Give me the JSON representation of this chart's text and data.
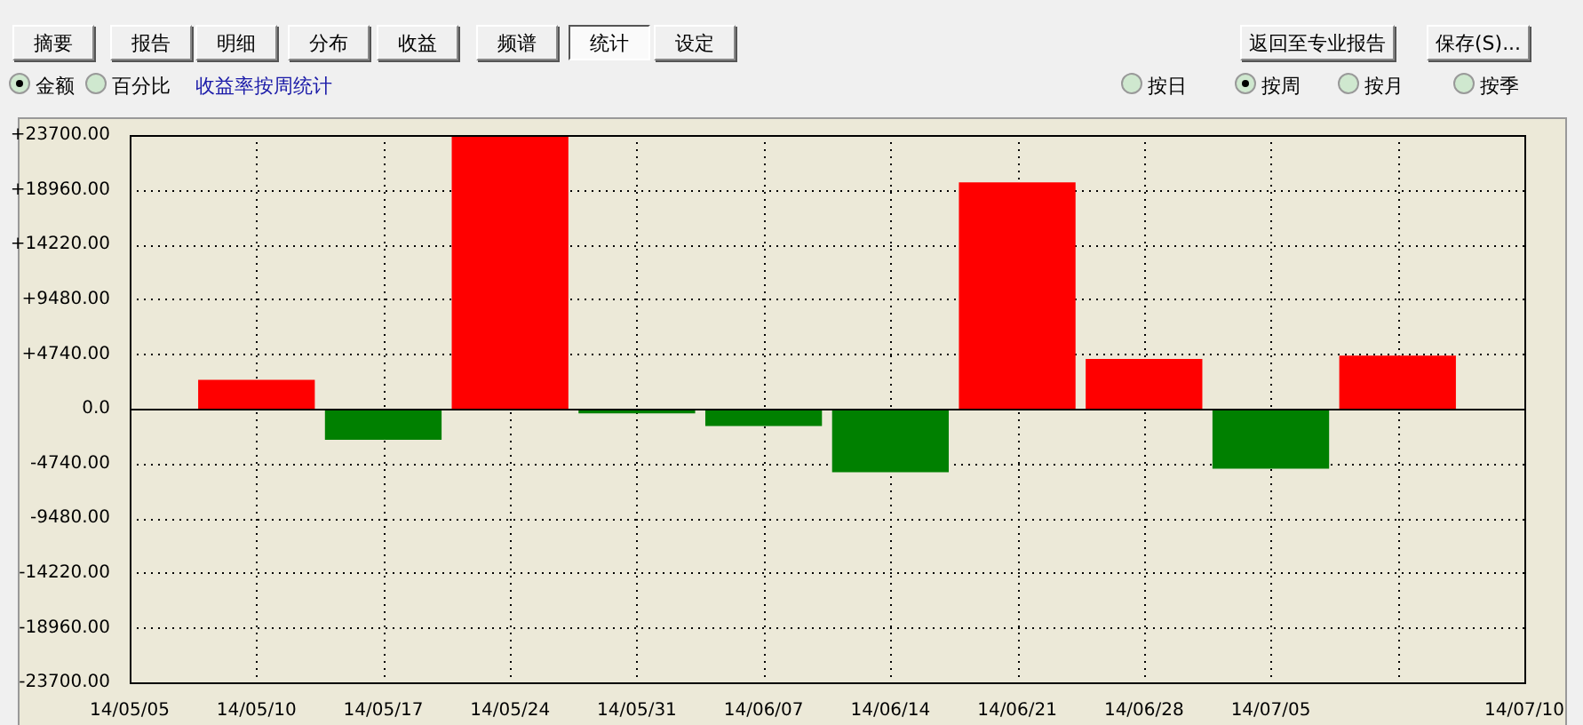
{
  "chart_data": {
    "type": "bar",
    "title": "收益率按周统计",
    "annotations": [
      "摘要",
      "报告",
      "明细",
      "分布",
      "收益",
      "频谱",
      "统计",
      "设定",
      "返回至专业报告",
      "保存(S)...",
      "金额",
      "百分比",
      "按日",
      "按周",
      "按月",
      "按季"
    ],
    "categories": [
      "14/05/05",
      "14/05/10",
      "14/05/17",
      "14/05/24",
      "14/05/31",
      "14/06/07",
      "14/06/14",
      "14/06/21",
      "14/06/28",
      "14/07/05",
      null,
      "14/07/10"
    ],
    "values": [
      null,
      2500,
      -2700,
      23700,
      -400,
      -1500,
      -5500,
      19600,
      4300,
      -5200,
      4600,
      null
    ],
    "colors": [
      null,
      "#ff0000",
      "#008000",
      "#ff0000",
      "#008000",
      "#008000",
      "#008000",
      "#ff0000",
      "#ff0000",
      "#008000",
      "#ff0000",
      null
    ],
    "ylim": [
      -23700,
      23700
    ],
    "yticks": [
      {
        "value": 23700,
        "label": "+23700.00"
      },
      {
        "value": 18960,
        "label": "+18960.00"
      },
      {
        "value": 14220,
        "label": "+14220.00"
      },
      {
        "value": 9480,
        "label": "+9480.00"
      },
      {
        "value": 4740,
        "label": "+4740.00"
      },
      {
        "value": 0,
        "label": "0.0"
      },
      {
        "value": -4740,
        "label": "-4740.00"
      },
      {
        "value": -9480,
        "label": "-9480.00"
      },
      {
        "value": -14220,
        "label": "-14220.00"
      },
      {
        "value": -18960,
        "label": "-18960.00"
      },
      {
        "value": -23700,
        "label": "-23700.00"
      }
    ],
    "grid": true
  }
}
